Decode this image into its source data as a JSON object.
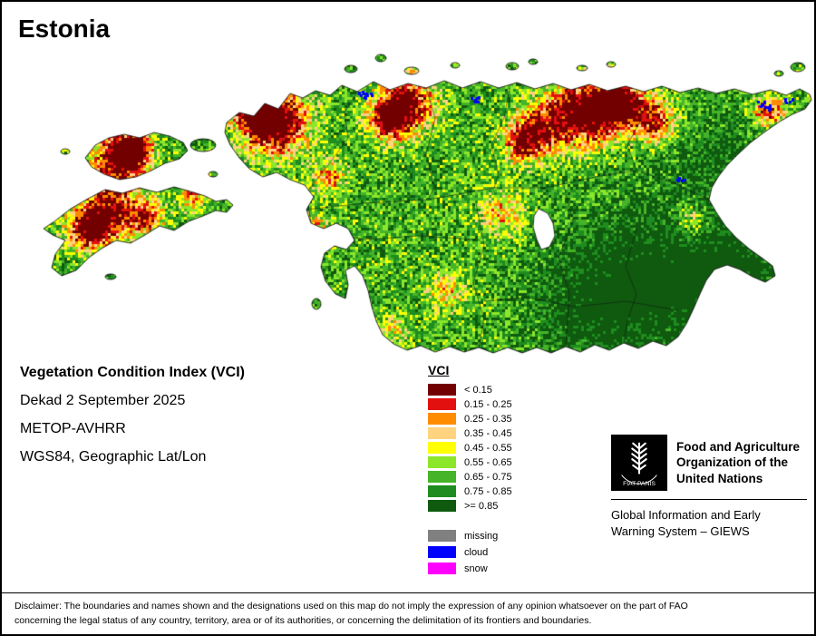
{
  "title": "Estonia",
  "info": {
    "index_name": "Vegetation Condition Index (VCI)",
    "dekad": "Dekad 2 September 2025",
    "sensor": "METOP-AVHRR",
    "projection": "WGS84, Geographic Lat/Lon"
  },
  "legend": {
    "title": "VCI",
    "classes": [
      {
        "label": "< 0.15",
        "color": "#730000"
      },
      {
        "label": "0.15 - 0.25",
        "color": "#e31010"
      },
      {
        "label": "0.25 - 0.35",
        "color": "#ff8c00"
      },
      {
        "label": "0.35 - 0.45",
        "color": "#ffd37f"
      },
      {
        "label": "0.45 - 0.55",
        "color": "#ffff00"
      },
      {
        "label": "0.55 - 0.65",
        "color": "#8ce62a"
      },
      {
        "label": "0.65 - 0.75",
        "color": "#46b428"
      },
      {
        "label": "0.75 - 0.85",
        "color": "#1e8c1e"
      },
      {
        "label": ">= 0.85",
        "color": "#0f5a0f"
      }
    ],
    "extras": [
      {
        "label": "missing",
        "color": "#808080"
      },
      {
        "label": "cloud",
        "color": "#0000ff"
      },
      {
        "label": "snow",
        "color": "#ff00ff"
      }
    ]
  },
  "fao": {
    "motto": "FIAT PANIS",
    "org_name": "Food and Agriculture Organization of the United Nations",
    "giews": "Global Information and Early Warning System – GIEWS"
  },
  "disclaimer": {
    "line1": "Disclaimer: The boundaries and names shown and the designations used on this map do not imply the expression of any opinion whatsoever on the part of FAO",
    "line2": "concerning the legal status of any country, territory, area or of its authorities, or concerning the delimitation of its frontiers and boundaries."
  }
}
